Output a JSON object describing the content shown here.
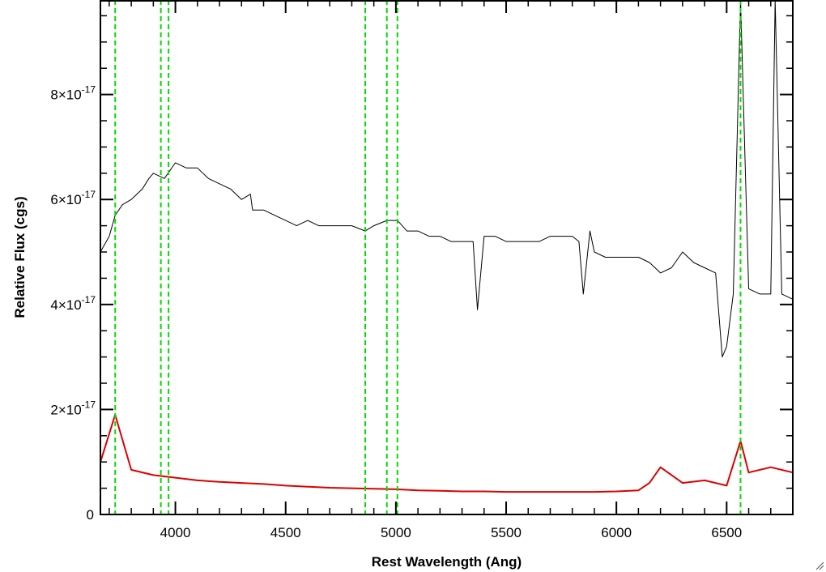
{
  "chart_data": {
    "type": "line",
    "title": "",
    "xlabel": "Rest Wavelength (Ang)",
    "ylabel": "Relative Flux (cgs)",
    "xlim": [
      3660,
      6800
    ],
    "ylim": [
      0,
      9.8e-17
    ],
    "y_exponent": "-17",
    "x_ticks": [
      {
        "value": 4000,
        "label": "4000"
      },
      {
        "value": 4500,
        "label": "4500"
      },
      {
        "value": 5000,
        "label": "5000"
      },
      {
        "value": 5500,
        "label": "5500"
      },
      {
        "value": 6000,
        "label": "6000"
      },
      {
        "value": 6500,
        "label": "6500"
      }
    ],
    "y_ticks": [
      {
        "value": 0,
        "mant": "0",
        "label": "0"
      },
      {
        "value": 2e-17,
        "mant": "2",
        "label": "2×10-17"
      },
      {
        "value": 4e-17,
        "mant": "4",
        "label": "4×10-17"
      },
      {
        "value": 6e-17,
        "mant": "6",
        "label": "6×10-17"
      },
      {
        "value": 8e-17,
        "mant": "8",
        "label": "8×10-17"
      }
    ],
    "grid": false,
    "legend": "none",
    "vertical_lines": {
      "style": "dashed",
      "color": "#00dd00",
      "x": [
        3727,
        3934,
        3969,
        4861,
        4959,
        5007,
        6563
      ]
    },
    "series": [
      {
        "color": "#000000",
        "x": [
          3660,
          3700,
          3727,
          3760,
          3800,
          3850,
          3880,
          3900,
          3950,
          4000,
          4050,
          4100,
          4150,
          4200,
          4250,
          4300,
          4340,
          4350,
          4400,
          4450,
          4500,
          4550,
          4600,
          4650,
          4700,
          4750,
          4800,
          4861,
          4900,
          4959,
          5007,
          5050,
          5100,
          5150,
          5200,
          5250,
          5300,
          5350,
          5370,
          5400,
          5450,
          5500,
          5550,
          5600,
          5650,
          5700,
          5750,
          5800,
          5830,
          5850,
          5880,
          5900,
          5950,
          6000,
          6050,
          6100,
          6150,
          6200,
          6250,
          6300,
          6350,
          6400,
          6450,
          6480,
          6500,
          6530,
          6563,
          6600,
          6650,
          6700,
          6720,
          6750,
          6800
        ],
        "y": [
          5e-17,
          5.3e-17,
          5.7e-17,
          5.9e-17,
          6e-17,
          6.2e-17,
          6.4e-17,
          6.5e-17,
          6.4e-17,
          6.7e-17,
          6.6e-17,
          6.6e-17,
          6.4e-17,
          6.3e-17,
          6.2e-17,
          6e-17,
          6.1e-17,
          5.8e-17,
          5.8e-17,
          5.7e-17,
          5.6e-17,
          5.5e-17,
          5.6e-17,
          5.5e-17,
          5.5e-17,
          5.5e-17,
          5.5e-17,
          5.4e-17,
          5.5e-17,
          5.6e-17,
          5.6e-17,
          5.4e-17,
          5.4e-17,
          5.3e-17,
          5.3e-17,
          5.2e-17,
          5.2e-17,
          5.2e-17,
          3.9e-17,
          5.3e-17,
          5.3e-17,
          5.2e-17,
          5.2e-17,
          5.2e-17,
          5.2e-17,
          5.3e-17,
          5.3e-17,
          5.3e-17,
          5.2e-17,
          4.2e-17,
          5.4e-17,
          5e-17,
          4.9e-17,
          4.9e-17,
          4.9e-17,
          4.9e-17,
          4.8e-17,
          4.6e-17,
          4.7e-17,
          5e-17,
          4.8e-17,
          4.7e-17,
          4.6e-17,
          3e-17,
          3.2e-17,
          4.2e-17,
          9.8e-17,
          4.3e-17,
          4.2e-17,
          4.2e-17,
          9.8e-17,
          4.2e-17,
          4.1e-17
        ]
      },
      {
        "color": "#dd0000",
        "x": [
          3660,
          3727,
          3800,
          3900,
          4000,
          4100,
          4200,
          4300,
          4400,
          4500,
          4600,
          4700,
          4800,
          4900,
          5000,
          5100,
          5200,
          5300,
          5400,
          5500,
          5600,
          5700,
          5800,
          5900,
          6000,
          6100,
          6150,
          6200,
          6300,
          6400,
          6500,
          6563,
          6600,
          6700,
          6800
        ],
        "y": [
          1e-17,
          1.9e-17,
          8.5e-18,
          7.5e-18,
          7e-18,
          6.5e-18,
          6.2e-18,
          6e-18,
          5.8e-18,
          5.5e-18,
          5.3e-18,
          5.1e-18,
          5e-18,
          4.9e-18,
          4.8e-18,
          4.6e-18,
          4.5e-18,
          4.4e-18,
          4.4e-18,
          4.3e-18,
          4.3e-18,
          4.3e-18,
          4.3e-18,
          4.3e-18,
          4.4e-18,
          4.6e-18,
          6e-18,
          9e-18,
          6e-18,
          6.5e-18,
          5.5e-18,
          1.4e-17,
          8e-18,
          9e-18,
          8e-18
        ]
      }
    ]
  }
}
